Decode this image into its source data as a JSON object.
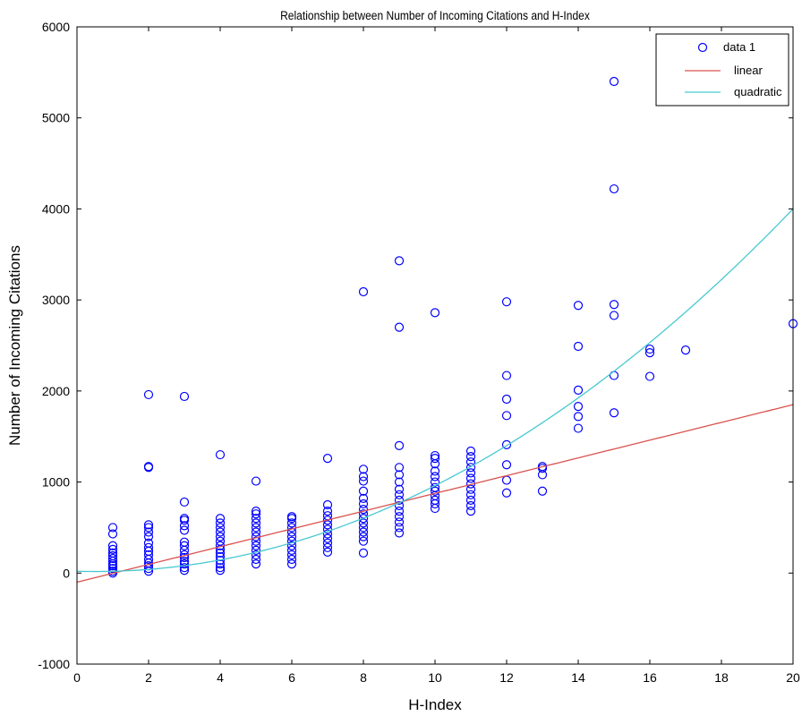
{
  "chart_data": {
    "type": "scatter",
    "title": "Relationship between Number of Incoming Citations and H-Index",
    "xlabel": "H-Index",
    "ylabel": "Number of Incoming Citations",
    "xlim": [
      0,
      20
    ],
    "ylim": [
      -1000,
      6000
    ],
    "xticks": [
      0,
      2,
      4,
      6,
      8,
      10,
      12,
      14,
      16,
      18,
      20
    ],
    "yticks": [
      -1000,
      0,
      1000,
      2000,
      3000,
      4000,
      5000,
      6000
    ],
    "grid": false,
    "legend_position": "top-right",
    "series": [
      {
        "name": "data 1",
        "kind": "scatter",
        "marker": "circle",
        "color": "#0000ff",
        "points": [
          [
            1,
            0
          ],
          [
            1,
            20
          ],
          [
            1,
            50
          ],
          [
            1,
            80
          ],
          [
            1,
            100
          ],
          [
            1,
            130
          ],
          [
            1,
            160
          ],
          [
            1,
            190
          ],
          [
            1,
            220
          ],
          [
            1,
            260
          ],
          [
            1,
            300
          ],
          [
            1,
            430
          ],
          [
            1,
            500
          ],
          [
            2,
            20
          ],
          [
            2,
            50
          ],
          [
            2,
            80
          ],
          [
            2,
            110
          ],
          [
            2,
            150
          ],
          [
            2,
            200
          ],
          [
            2,
            240
          ],
          [
            2,
            280
          ],
          [
            2,
            330
          ],
          [
            2,
            400
          ],
          [
            2,
            450
          ],
          [
            2,
            500
          ],
          [
            2,
            530
          ],
          [
            2,
            1160
          ],
          [
            2,
            1170
          ],
          [
            2,
            1960
          ],
          [
            3,
            30
          ],
          [
            3,
            60
          ],
          [
            3,
            100
          ],
          [
            3,
            130
          ],
          [
            3,
            170
          ],
          [
            3,
            200
          ],
          [
            3,
            250
          ],
          [
            3,
            300
          ],
          [
            3,
            340
          ],
          [
            3,
            470
          ],
          [
            3,
            520
          ],
          [
            3,
            580
          ],
          [
            3,
            600
          ],
          [
            3,
            780
          ],
          [
            3,
            1940
          ],
          [
            4,
            30
          ],
          [
            4,
            60
          ],
          [
            4,
            100
          ],
          [
            4,
            140
          ],
          [
            4,
            180
          ],
          [
            4,
            220
          ],
          [
            4,
            260
          ],
          [
            4,
            300
          ],
          [
            4,
            350
          ],
          [
            4,
            400
          ],
          [
            4,
            450
          ],
          [
            4,
            500
          ],
          [
            4,
            550
          ],
          [
            4,
            600
          ],
          [
            4,
            1300
          ],
          [
            5,
            100
          ],
          [
            5,
            150
          ],
          [
            5,
            200
          ],
          [
            5,
            250
          ],
          [
            5,
            300
          ],
          [
            5,
            350
          ],
          [
            5,
            400
          ],
          [
            5,
            450
          ],
          [
            5,
            500
          ],
          [
            5,
            550
          ],
          [
            5,
            600
          ],
          [
            5,
            650
          ],
          [
            5,
            680
          ],
          [
            5,
            1010
          ],
          [
            6,
            100
          ],
          [
            6,
            150
          ],
          [
            6,
            200
          ],
          [
            6,
            250
          ],
          [
            6,
            300
          ],
          [
            6,
            350
          ],
          [
            6,
            400
          ],
          [
            6,
            450
          ],
          [
            6,
            500
          ],
          [
            6,
            550
          ],
          [
            6,
            600
          ],
          [
            6,
            620
          ],
          [
            7,
            230
          ],
          [
            7,
            280
          ],
          [
            7,
            330
          ],
          [
            7,
            380
          ],
          [
            7,
            430
          ],
          [
            7,
            480
          ],
          [
            7,
            530
          ],
          [
            7,
            580
          ],
          [
            7,
            630
          ],
          [
            7,
            680
          ],
          [
            7,
            750
          ],
          [
            7,
            1260
          ],
          [
            8,
            220
          ],
          [
            8,
            350
          ],
          [
            8,
            400
          ],
          [
            8,
            450
          ],
          [
            8,
            500
          ],
          [
            8,
            550
          ],
          [
            8,
            600
          ],
          [
            8,
            650
          ],
          [
            8,
            700
          ],
          [
            8,
            760
          ],
          [
            8,
            820
          ],
          [
            8,
            900
          ],
          [
            8,
            1010
          ],
          [
            8,
            1060
          ],
          [
            8,
            1140
          ],
          [
            8,
            3090
          ],
          [
            9,
            440
          ],
          [
            9,
            500
          ],
          [
            9,
            560
          ],
          [
            9,
            620
          ],
          [
            9,
            680
          ],
          [
            9,
            740
          ],
          [
            9,
            800
          ],
          [
            9,
            860
          ],
          [
            9,
            920
          ],
          [
            9,
            1000
          ],
          [
            9,
            1080
          ],
          [
            9,
            1160
          ],
          [
            9,
            1400
          ],
          [
            9,
            2700
          ],
          [
            9,
            3430
          ],
          [
            10,
            710
          ],
          [
            10,
            760
          ],
          [
            10,
            800
          ],
          [
            10,
            850
          ],
          [
            10,
            900
          ],
          [
            10,
            940
          ],
          [
            10,
            1000
          ],
          [
            10,
            1060
          ],
          [
            10,
            1120
          ],
          [
            10,
            1200
          ],
          [
            10,
            1260
          ],
          [
            10,
            1290
          ],
          [
            10,
            2860
          ],
          [
            11,
            680
          ],
          [
            11,
            740
          ],
          [
            11,
            800
          ],
          [
            11,
            860
          ],
          [
            11,
            920
          ],
          [
            11,
            980
          ],
          [
            11,
            1040
          ],
          [
            11,
            1100
          ],
          [
            11,
            1160
          ],
          [
            11,
            1220
          ],
          [
            11,
            1280
          ],
          [
            11,
            1340
          ],
          [
            12,
            880
          ],
          [
            12,
            1020
          ],
          [
            12,
            1190
          ],
          [
            12,
            1410
          ],
          [
            12,
            1730
          ],
          [
            12,
            1910
          ],
          [
            12,
            2170
          ],
          [
            12,
            2980
          ],
          [
            13,
            900
          ],
          [
            13,
            1080
          ],
          [
            13,
            1150
          ],
          [
            13,
            1170
          ],
          [
            14,
            1590
          ],
          [
            14,
            1720
          ],
          [
            14,
            1830
          ],
          [
            14,
            2010
          ],
          [
            14,
            2490
          ],
          [
            14,
            2940
          ],
          [
            15,
            1760
          ],
          [
            15,
            2170
          ],
          [
            15,
            2830
          ],
          [
            15,
            2950
          ],
          [
            15,
            4220
          ],
          [
            15,
            5400
          ],
          [
            16,
            2160
          ],
          [
            16,
            2420
          ],
          [
            16,
            2460
          ],
          [
            17,
            2450
          ],
          [
            20,
            2740
          ]
        ]
      },
      {
        "name": "linear",
        "kind": "line",
        "color": "#d9534f",
        "equation": {
          "form": "linear",
          "intercept": -100,
          "slope": 97.5
        }
      },
      {
        "name": "quadratic",
        "kind": "line",
        "color": "#48c9d0",
        "equation": {
          "form": "quadratic",
          "a": 10.5,
          "b": -11,
          "c": 20
        }
      }
    ]
  }
}
